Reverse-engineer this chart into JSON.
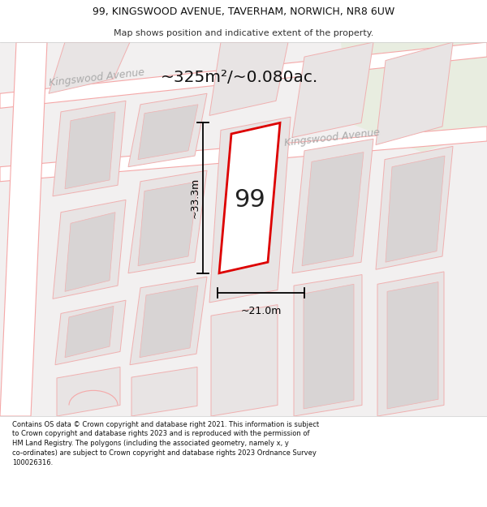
{
  "title_line1": "99, KINGSWOOD AVENUE, TAVERHAM, NORWICH, NR8 6UW",
  "title_line2": "Map shows position and indicative extent of the property.",
  "area_label": "~325m²/~0.080ac.",
  "property_number": "99",
  "dim_width": "~21.0m",
  "dim_height": "~33.3m",
  "road_label1": "Kingswood Avenue",
  "road_label2": "Kingswood Avenue",
  "footer_text": "Contains OS data © Crown copyright and database right 2021. This information is subject to Crown copyright and database rights 2023 and is reproduced with the permission of HM Land Registry. The polygons (including the associated geometry, namely x, y co-ordinates) are subject to Crown copyright and database rights 2023 Ordnance Survey 100026316.",
  "map_bg": "#f2f0f0",
  "road_color": "#f5a8a8",
  "road_fill": "#ffffff",
  "plot_color": "#dd0000",
  "plot_fill": "#ffffff",
  "building_fill": "#e8e4e4",
  "building_outline": "#f0b0b0",
  "building_inner": "#d8d4d4",
  "green_area": "#e8ede0",
  "road_label_color": "#aaaaaa",
  "header_bg": "#ffffff",
  "footer_bg": "#ffffff"
}
